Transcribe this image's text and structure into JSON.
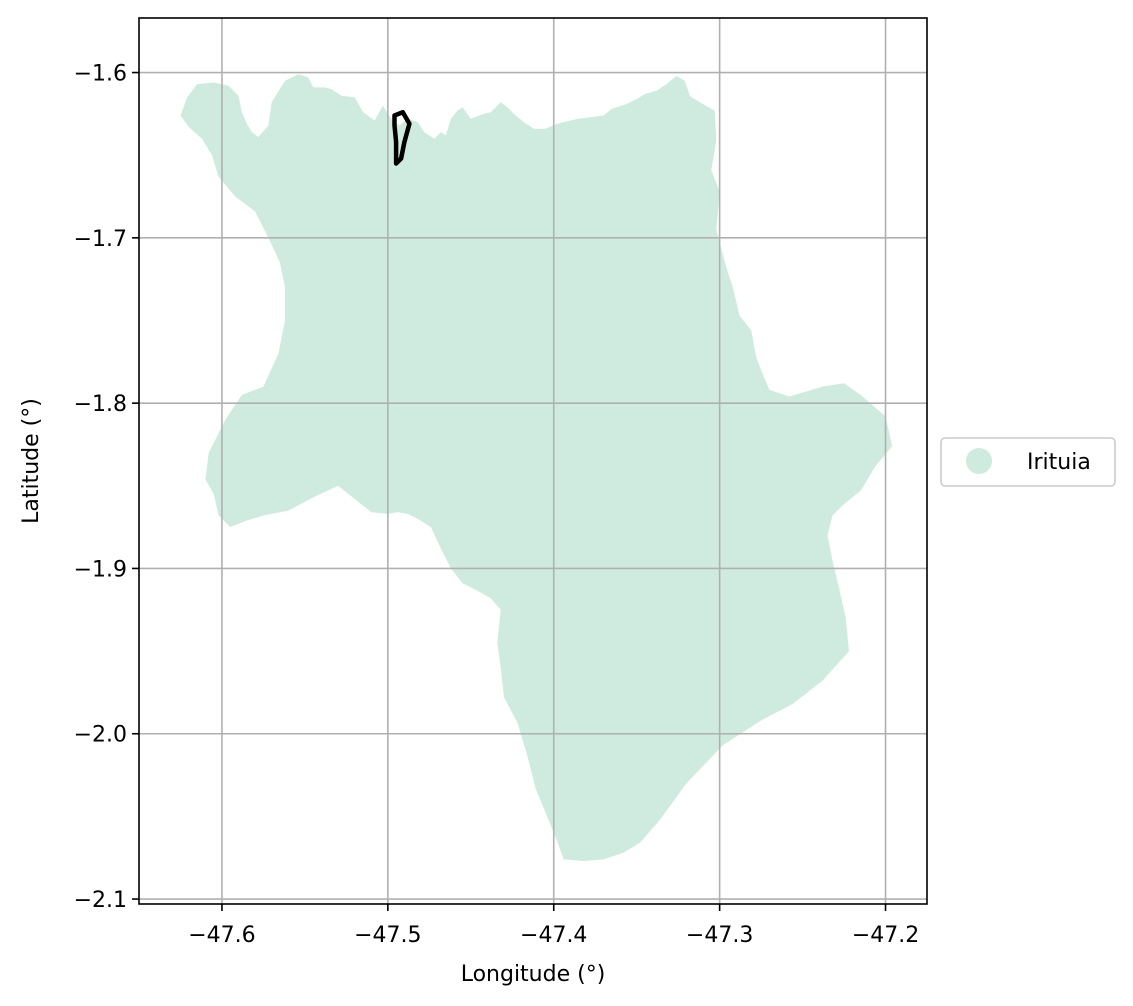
{
  "chart_data": {
    "type": "map",
    "xlabel": "Longitude (°)",
    "ylabel": "Latitude (°)",
    "xlim": [
      -47.65,
      -47.175
    ],
    "ylim": [
      -2.103,
      -1.567
    ],
    "x_ticks": [
      -47.6,
      -47.5,
      -47.4,
      -47.3,
      -47.2
    ],
    "y_ticks": [
      -1.6,
      -1.7,
      -1.8,
      -1.9,
      -2.0,
      -2.1
    ],
    "x_tick_labels": [
      "−47.6",
      "−47.5",
      "−47.4",
      "−47.3",
      "−47.2"
    ],
    "y_tick_labels": [
      "−1.6",
      "−1.7",
      "−1.8",
      "−1.9",
      "−2.0",
      "−2.1"
    ],
    "grid": true,
    "legend_position": "center-right-outside",
    "regions": [
      {
        "name": "Irituia",
        "color": "#cfebdf",
        "outline": [
          [
            -47.625,
            -1.626
          ],
          [
            -47.621,
            -1.615
          ],
          [
            -47.615,
            -1.607
          ],
          [
            -47.605,
            -1.606
          ],
          [
            -47.596,
            -1.608
          ],
          [
            -47.59,
            -1.614
          ],
          [
            -47.588,
            -1.624
          ],
          [
            -47.585,
            -1.631
          ],
          [
            -47.582,
            -1.636
          ],
          [
            -47.578,
            -1.639
          ],
          [
            -47.572,
            -1.632
          ],
          [
            -47.57,
            -1.618
          ],
          [
            -47.562,
            -1.605
          ],
          [
            -47.554,
            -1.601
          ],
          [
            -47.548,
            -1.603
          ],
          [
            -47.545,
            -1.609
          ],
          [
            -47.538,
            -1.609
          ],
          [
            -47.534,
            -1.61
          ],
          [
            -47.528,
            -1.614
          ],
          [
            -47.52,
            -1.615
          ],
          [
            -47.515,
            -1.624
          ],
          [
            -47.508,
            -1.629
          ],
          [
            -47.503,
            -1.62
          ],
          [
            -47.498,
            -1.628
          ],
          [
            -47.493,
            -1.632
          ],
          [
            -47.488,
            -1.628
          ],
          [
            -47.482,
            -1.63
          ],
          [
            -47.478,
            -1.636
          ],
          [
            -47.472,
            -1.64
          ],
          [
            -47.468,
            -1.636
          ],
          [
            -47.465,
            -1.638
          ],
          [
            -47.462,
            -1.628
          ],
          [
            -47.458,
            -1.623
          ],
          [
            -47.455,
            -1.621
          ],
          [
            -47.45,
            -1.628
          ],
          [
            -47.445,
            -1.626
          ],
          [
            -47.442,
            -1.625
          ],
          [
            -47.438,
            -1.624
          ],
          [
            -47.432,
            -1.618
          ],
          [
            -47.428,
            -1.621
          ],
          [
            -47.423,
            -1.626
          ],
          [
            -47.418,
            -1.63
          ],
          [
            -47.412,
            -1.634
          ],
          [
            -47.405,
            -1.634
          ],
          [
            -47.398,
            -1.631
          ],
          [
            -47.39,
            -1.629
          ],
          [
            -47.385,
            -1.628
          ],
          [
            -47.378,
            -1.627
          ],
          [
            -47.37,
            -1.626
          ],
          [
            -47.365,
            -1.622
          ],
          [
            -47.356,
            -1.619
          ],
          [
            -47.35,
            -1.616
          ],
          [
            -47.345,
            -1.613
          ],
          [
            -47.338,
            -1.611
          ],
          [
            -47.332,
            -1.607
          ],
          [
            -47.326,
            -1.602
          ],
          [
            -47.321,
            -1.605
          ],
          [
            -47.318,
            -1.614
          ],
          [
            -47.312,
            -1.618
          ],
          [
            -47.303,
            -1.623
          ],
          [
            -47.302,
            -1.641
          ],
          [
            -47.305,
            -1.659
          ],
          [
            -47.3,
            -1.672
          ],
          [
            -47.302,
            -1.695
          ],
          [
            -47.296,
            -1.718
          ],
          [
            -47.292,
            -1.73
          ],
          [
            -47.288,
            -1.747
          ],
          [
            -47.281,
            -1.756
          ],
          [
            -47.278,
            -1.772
          ],
          [
            -47.275,
            -1.78
          ],
          [
            -47.27,
            -1.792
          ],
          [
            -47.258,
            -1.796
          ],
          [
            -47.248,
            -1.793
          ],
          [
            -47.238,
            -1.79
          ],
          [
            -47.225,
            -1.788
          ],
          [
            -47.215,
            -1.795
          ],
          [
            -47.2,
            -1.808
          ],
          [
            -47.196,
            -1.826
          ],
          [
            -47.206,
            -1.838
          ],
          [
            -47.215,
            -1.853
          ],
          [
            -47.225,
            -1.861
          ],
          [
            -47.232,
            -1.868
          ],
          [
            -47.235,
            -1.88
          ],
          [
            -47.232,
            -1.895
          ],
          [
            -47.228,
            -1.912
          ],
          [
            -47.224,
            -1.93
          ],
          [
            -47.222,
            -1.95
          ],
          [
            -47.238,
            -1.968
          ],
          [
            -47.256,
            -1.982
          ],
          [
            -47.275,
            -1.992
          ],
          [
            -47.298,
            -2.007
          ],
          [
            -47.32,
            -2.03
          ],
          [
            -47.336,
            -2.052
          ],
          [
            -47.348,
            -2.066
          ],
          [
            -47.358,
            -2.072
          ],
          [
            -47.37,
            -2.076
          ],
          [
            -47.382,
            -2.077
          ],
          [
            -47.394,
            -2.076
          ],
          [
            -47.398,
            -2.065
          ],
          [
            -47.404,
            -2.05
          ],
          [
            -47.411,
            -2.033
          ],
          [
            -47.416,
            -2.013
          ],
          [
            -47.422,
            -1.993
          ],
          [
            -47.43,
            -1.978
          ],
          [
            -47.432,
            -1.96
          ],
          [
            -47.434,
            -1.945
          ],
          [
            -47.432,
            -1.925
          ],
          [
            -47.438,
            -1.918
          ],
          [
            -47.447,
            -1.913
          ],
          [
            -47.455,
            -1.909
          ],
          [
            -47.462,
            -1.9
          ],
          [
            -47.468,
            -1.888
          ],
          [
            -47.474,
            -1.875
          ],
          [
            -47.482,
            -1.87
          ],
          [
            -47.488,
            -1.867
          ],
          [
            -47.494,
            -1.866
          ],
          [
            -47.5,
            -1.867
          ],
          [
            -47.51,
            -1.866
          ],
          [
            -47.52,
            -1.858
          ],
          [
            -47.53,
            -1.85
          ],
          [
            -47.545,
            -1.857
          ],
          [
            -47.56,
            -1.865
          ],
          [
            -47.575,
            -1.868
          ],
          [
            -47.585,
            -1.871
          ],
          [
            -47.595,
            -1.875
          ],
          [
            -47.602,
            -1.868
          ],
          [
            -47.605,
            -1.855
          ],
          [
            -47.61,
            -1.846
          ],
          [
            -47.608,
            -1.83
          ],
          [
            -47.598,
            -1.81
          ],
          [
            -47.588,
            -1.795
          ],
          [
            -47.575,
            -1.79
          ],
          [
            -47.566,
            -1.77
          ],
          [
            -47.562,
            -1.75
          ],
          [
            -47.562,
            -1.73
          ],
          [
            -47.565,
            -1.715
          ],
          [
            -47.572,
            -1.7
          ],
          [
            -47.58,
            -1.684
          ],
          [
            -47.592,
            -1.675
          ],
          [
            -47.602,
            -1.663
          ],
          [
            -47.606,
            -1.65
          ],
          [
            -47.612,
            -1.64
          ],
          [
            -47.62,
            -1.633
          ]
        ],
        "highlight": {
          "outline": [
            [
              -47.496,
              -1.626
            ],
            [
              -47.491,
              -1.624
            ],
            [
              -47.487,
              -1.631
            ],
            [
              -47.49,
              -1.642
            ],
            [
              -47.492,
              -1.652
            ],
            [
              -47.495,
              -1.655
            ],
            [
              -47.495,
              -1.642
            ],
            [
              -47.496,
              -1.632
            ]
          ]
        }
      }
    ],
    "legend": [
      {
        "label": "Irituia",
        "color": "#cfebdf"
      }
    ]
  }
}
